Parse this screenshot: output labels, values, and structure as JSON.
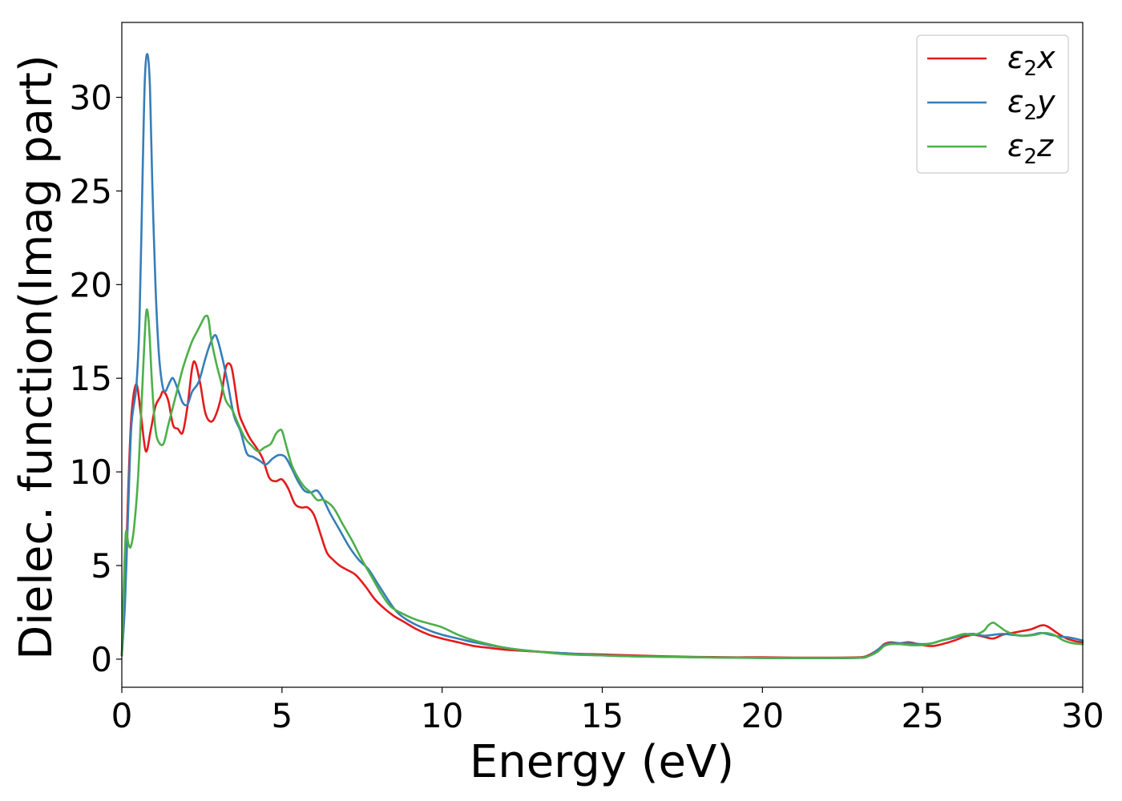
{
  "chart_data": {
    "type": "line",
    "title": "",
    "xlabel": "Energy (eV)",
    "ylabel": "Dielec. function(Imag part)",
    "xlim": [
      0,
      30
    ],
    "ylim": [
      -1.5,
      34
    ],
    "xticks": [
      0,
      5,
      10,
      15,
      20,
      25,
      30
    ],
    "yticks": [
      0,
      5,
      10,
      15,
      20,
      25,
      30
    ],
    "legend_position": "top-right",
    "series": [
      {
        "name": "ε2x",
        "symbol": "ε",
        "sub": "2",
        "axis": "x",
        "color": "#e41a1c",
        "x": [
          0,
          0.1,
          0.2,
          0.3,
          0.45,
          0.6,
          0.75,
          0.9,
          1.05,
          1.2,
          1.3,
          1.45,
          1.6,
          1.75,
          1.9,
          2.05,
          2.2,
          2.3,
          2.45,
          2.6,
          2.75,
          2.9,
          3.1,
          3.25,
          3.4,
          3.5,
          3.65,
          3.8,
          4.0,
          4.2,
          4.4,
          4.6,
          4.8,
          5.0,
          5.2,
          5.4,
          5.6,
          5.8,
          6.0,
          6.2,
          6.4,
          6.6,
          6.8,
          7.0,
          7.3,
          7.6,
          7.9,
          8.2,
          8.5,
          8.8,
          9.2,
          9.6,
          10.0,
          10.5,
          11.0,
          11.5,
          12.0,
          13.0,
          14.0,
          15.0,
          16.0,
          17.0,
          18.0,
          19.0,
          20.0,
          21.0,
          22.0,
          23.0,
          23.3,
          23.6,
          23.8,
          24.0,
          24.3,
          24.6,
          25.0,
          25.3,
          25.6,
          26.0,
          26.3,
          26.6,
          26.9,
          27.2,
          27.5,
          27.8,
          28.1,
          28.4,
          28.7,
          28.9,
          29.2,
          29.5,
          29.8,
          30.0
        ],
        "y": [
          0.2,
          3.5,
          9.0,
          13.0,
          14.7,
          13.0,
          11.1,
          12.2,
          13.5,
          14.0,
          14.3,
          13.8,
          12.5,
          12.3,
          12.1,
          13.5,
          15.6,
          15.8,
          14.7,
          13.2,
          12.7,
          12.9,
          14.0,
          15.6,
          15.7,
          14.9,
          13.2,
          12.5,
          11.8,
          11.3,
          10.7,
          9.7,
          9.5,
          9.6,
          9.1,
          8.3,
          8.1,
          8.1,
          7.7,
          6.7,
          5.7,
          5.3,
          5.0,
          4.8,
          4.5,
          3.9,
          3.2,
          2.7,
          2.3,
          2.0,
          1.6,
          1.3,
          1.1,
          0.9,
          0.7,
          0.6,
          0.5,
          0.4,
          0.3,
          0.25,
          0.2,
          0.15,
          0.12,
          0.1,
          0.1,
          0.08,
          0.08,
          0.1,
          0.2,
          0.5,
          0.8,
          0.9,
          0.85,
          0.9,
          0.75,
          0.7,
          0.8,
          1.0,
          1.2,
          1.3,
          1.2,
          1.1,
          1.3,
          1.4,
          1.5,
          1.6,
          1.8,
          1.75,
          1.4,
          1.1,
          0.95,
          0.9
        ]
      },
      {
        "name": "ε2y",
        "symbol": "ε",
        "sub": "2",
        "axis": "y",
        "color": "#377eb8",
        "x": [
          0,
          0.1,
          0.2,
          0.3,
          0.45,
          0.55,
          0.65,
          0.72,
          0.8,
          0.88,
          0.95,
          1.05,
          1.15,
          1.25,
          1.35,
          1.5,
          1.6,
          1.75,
          1.9,
          2.05,
          2.2,
          2.4,
          2.6,
          2.75,
          2.9,
          3.0,
          3.15,
          3.3,
          3.5,
          3.7,
          3.9,
          4.1,
          4.3,
          4.5,
          4.7,
          4.9,
          5.1,
          5.3,
          5.5,
          5.7,
          5.9,
          6.1,
          6.3,
          6.5,
          6.8,
          7.1,
          7.4,
          7.7,
          8.0,
          8.3,
          8.6,
          9.0,
          9.5,
          10.0,
          10.5,
          11.0,
          12.0,
          13.0,
          14.0,
          15.0,
          16.0,
          17.0,
          18.0,
          19.0,
          20.0,
          21.0,
          22.0,
          23.0,
          23.3,
          23.6,
          23.8,
          24.0,
          24.3,
          24.6,
          25.0,
          25.3,
          25.6,
          26.0,
          26.3,
          26.6,
          26.9,
          27.2,
          27.5,
          27.8,
          28.1,
          28.4,
          28.7,
          29.0,
          29.3,
          29.6,
          30.0
        ],
        "y": [
          0.2,
          3.0,
          8.0,
          12.5,
          14.5,
          18.0,
          26.0,
          31.0,
          32.3,
          30.5,
          25.5,
          20.0,
          16.5,
          14.8,
          14.3,
          14.8,
          15.0,
          14.4,
          13.7,
          13.6,
          14.3,
          14.8,
          16.0,
          16.8,
          17.3,
          17.0,
          16.0,
          14.8,
          13.0,
          12.2,
          11.0,
          10.8,
          10.6,
          10.4,
          10.7,
          10.9,
          10.8,
          10.2,
          9.5,
          9.0,
          8.9,
          9.0,
          8.5,
          7.8,
          6.9,
          6.0,
          5.3,
          4.8,
          4.0,
          3.2,
          2.5,
          2.0,
          1.6,
          1.3,
          1.1,
          0.9,
          0.6,
          0.4,
          0.3,
          0.2,
          0.15,
          0.12,
          0.1,
          0.08,
          0.06,
          0.05,
          0.05,
          0.07,
          0.15,
          0.5,
          0.75,
          0.85,
          0.85,
          0.85,
          0.8,
          0.85,
          1.0,
          1.15,
          1.3,
          1.35,
          1.25,
          1.3,
          1.35,
          1.3,
          1.25,
          1.3,
          1.4,
          1.3,
          1.2,
          1.15,
          1.0
        ]
      },
      {
        "name": "ε2z",
        "symbol": "ε",
        "sub": "2",
        "axis": "z",
        "color": "#4daf4a",
        "x": [
          0,
          0.07,
          0.13,
          0.2,
          0.28,
          0.38,
          0.5,
          0.6,
          0.68,
          0.75,
          0.8,
          0.86,
          0.95,
          1.05,
          1.15,
          1.3,
          1.45,
          1.6,
          1.75,
          1.9,
          2.05,
          2.2,
          2.35,
          2.5,
          2.6,
          2.7,
          2.8,
          2.95,
          3.1,
          3.25,
          3.45,
          3.65,
          3.85,
          4.05,
          4.25,
          4.45,
          4.65,
          4.8,
          4.9,
          5.0,
          5.1,
          5.3,
          5.5,
          5.7,
          5.9,
          6.1,
          6.3,
          6.6,
          6.9,
          7.2,
          7.5,
          7.8,
          8.1,
          8.4,
          8.8,
          9.2,
          9.6,
          10.0,
          10.5,
          11.0,
          12.0,
          13.0,
          14.0,
          15.0,
          16.0,
          17.0,
          18.0,
          19.0,
          20.0,
          21.0,
          22.0,
          23.0,
          23.3,
          23.6,
          23.8,
          24.0,
          24.3,
          24.6,
          25.0,
          25.3,
          25.6,
          26.0,
          26.3,
          26.6,
          26.9,
          27.05,
          27.2,
          27.35,
          27.6,
          27.9,
          28.2,
          28.5,
          28.8,
          29.1,
          29.4,
          29.7,
          30.0
        ],
        "y": [
          0.2,
          4.5,
          6.8,
          6.2,
          6.0,
          7.0,
          9.5,
          13.0,
          16.0,
          18.3,
          18.6,
          17.5,
          14.5,
          12.3,
          11.6,
          11.5,
          12.5,
          13.5,
          14.5,
          15.5,
          16.3,
          17.0,
          17.5,
          18.0,
          18.3,
          18.2,
          17.0,
          15.8,
          14.8,
          13.8,
          13.3,
          12.5,
          11.8,
          11.4,
          11.1,
          11.3,
          11.5,
          12.0,
          12.2,
          12.2,
          11.6,
          10.4,
          9.7,
          9.2,
          8.9,
          8.5,
          8.5,
          8.1,
          7.2,
          6.3,
          5.3,
          4.4,
          3.5,
          2.8,
          2.4,
          2.1,
          1.9,
          1.7,
          1.3,
          1.0,
          0.6,
          0.4,
          0.25,
          0.2,
          0.15,
          0.12,
          0.1,
          0.08,
          0.07,
          0.06,
          0.06,
          0.08,
          0.15,
          0.4,
          0.7,
          0.8,
          0.8,
          0.75,
          0.75,
          0.85,
          1.0,
          1.2,
          1.35,
          1.3,
          1.5,
          1.8,
          1.95,
          1.8,
          1.5,
          1.3,
          1.25,
          1.3,
          1.4,
          1.3,
          1.0,
          0.85,
          0.8
        ]
      }
    ]
  }
}
